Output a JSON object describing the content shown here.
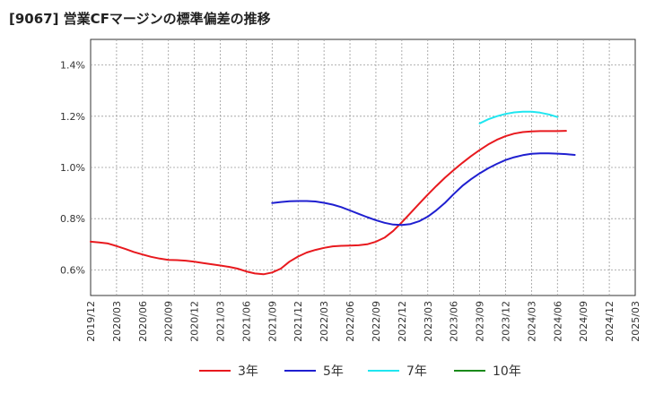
{
  "chart_data": {
    "type": "line",
    "title": "[9067]  営業CFマージンの標準偏差の推移",
    "xlabel": "",
    "ylabel": "",
    "x_ticks": [
      "2019/12",
      "2020/03",
      "2020/06",
      "2020/09",
      "2020/12",
      "2021/03",
      "2021/06",
      "2021/09",
      "2021/12",
      "2022/03",
      "2022/06",
      "2022/09",
      "2022/12",
      "2023/03",
      "2023/06",
      "2023/09",
      "2023/12",
      "2024/03",
      "2024/06",
      "2024/09",
      "2024/12",
      "2025/03"
    ],
    "y_ticks": [
      "0.6%",
      "0.8%",
      "1.0%",
      "1.2%",
      "1.4%"
    ],
    "y_tick_values": [
      0.6,
      0.8,
      1.0,
      1.2,
      1.4
    ],
    "ylim": [
      0.5,
      1.5
    ],
    "grid": true,
    "legend_position": "bottom",
    "series": [
      {
        "name": "3年",
        "color": "#e8191e",
        "points": [
          [
            "2019/12",
            0.71
          ],
          [
            "2020/01",
            0.707
          ],
          [
            "2020/02",
            0.703
          ],
          [
            "2020/03",
            0.693
          ],
          [
            "2020/04",
            0.682
          ],
          [
            "2020/05",
            0.67
          ],
          [
            "2020/06",
            0.66
          ],
          [
            "2020/07",
            0.651
          ],
          [
            "2020/08",
            0.644
          ],
          [
            "2020/09",
            0.639
          ],
          [
            "2020/10",
            0.638
          ],
          [
            "2020/11",
            0.636
          ],
          [
            "2020/12",
            0.632
          ],
          [
            "2021/01",
            0.627
          ],
          [
            "2021/02",
            0.622
          ],
          [
            "2021/03",
            0.617
          ],
          [
            "2021/04",
            0.612
          ],
          [
            "2021/05",
            0.605
          ],
          [
            "2021/06",
            0.594
          ],
          [
            "2021/07",
            0.586
          ],
          [
            "2021/08",
            0.583
          ],
          [
            "2021/09",
            0.59
          ],
          [
            "2021/10",
            0.605
          ],
          [
            "2021/11",
            0.632
          ],
          [
            "2021/12",
            0.652
          ],
          [
            "2022/01",
            0.668
          ],
          [
            "2022/02",
            0.678
          ],
          [
            "2022/03",
            0.686
          ],
          [
            "2022/04",
            0.692
          ],
          [
            "2022/05",
            0.694
          ],
          [
            "2022/06",
            0.695
          ],
          [
            "2022/07",
            0.696
          ],
          [
            "2022/08",
            0.7
          ],
          [
            "2022/09",
            0.71
          ],
          [
            "2022/10",
            0.726
          ],
          [
            "2022/11",
            0.752
          ],
          [
            "2022/12",
            0.786
          ],
          [
            "2023/01",
            0.822
          ],
          [
            "2023/02",
            0.858
          ],
          [
            "2023/03",
            0.894
          ],
          [
            "2023/04",
            0.928
          ],
          [
            "2023/05",
            0.96
          ],
          [
            "2023/06",
            0.99
          ],
          [
            "2023/07",
            1.018
          ],
          [
            "2023/08",
            1.044
          ],
          [
            "2023/09",
            1.068
          ],
          [
            "2023/10",
            1.09
          ],
          [
            "2023/11",
            1.108
          ],
          [
            "2023/12",
            1.122
          ],
          [
            "2024/01",
            1.132
          ],
          [
            "2024/02",
            1.138
          ],
          [
            "2024/03",
            1.141
          ],
          [
            "2024/04",
            1.142
          ],
          [
            "2024/05",
            1.142
          ],
          [
            "2024/06",
            1.142
          ],
          [
            "2024/07",
            1.143
          ]
        ]
      },
      {
        "name": "5年",
        "color": "#1f1fd0",
        "points": [
          [
            "2021/09",
            0.861
          ],
          [
            "2021/10",
            0.865
          ],
          [
            "2021/11",
            0.868
          ],
          [
            "2021/12",
            0.869
          ],
          [
            "2022/01",
            0.869
          ],
          [
            "2022/02",
            0.867
          ],
          [
            "2022/03",
            0.862
          ],
          [
            "2022/04",
            0.855
          ],
          [
            "2022/05",
            0.845
          ],
          [
            "2022/06",
            0.832
          ],
          [
            "2022/07",
            0.819
          ],
          [
            "2022/08",
            0.806
          ],
          [
            "2022/09",
            0.794
          ],
          [
            "2022/10",
            0.784
          ],
          [
            "2022/11",
            0.777
          ],
          [
            "2022/12",
            0.775
          ],
          [
            "2023/01",
            0.779
          ],
          [
            "2023/02",
            0.79
          ],
          [
            "2023/03",
            0.808
          ],
          [
            "2023/04",
            0.833
          ],
          [
            "2023/05",
            0.862
          ],
          [
            "2023/06",
            0.896
          ],
          [
            "2023/07",
            0.928
          ],
          [
            "2023/08",
            0.954
          ],
          [
            "2023/09",
            0.977
          ],
          [
            "2023/10",
            0.997
          ],
          [
            "2023/11",
            1.014
          ],
          [
            "2023/12",
            1.029
          ],
          [
            "2024/01",
            1.04
          ],
          [
            "2024/02",
            1.048
          ],
          [
            "2024/03",
            1.053
          ],
          [
            "2024/04",
            1.055
          ],
          [
            "2024/05",
            1.055
          ],
          [
            "2024/06",
            1.054
          ],
          [
            "2024/07",
            1.052
          ],
          [
            "2024/08",
            1.049
          ]
        ]
      },
      {
        "name": "7年",
        "color": "#1fe6f0",
        "points": [
          [
            "2023/09",
            1.172
          ],
          [
            "2023/10",
            1.188
          ],
          [
            "2023/11",
            1.2
          ],
          [
            "2023/12",
            1.209
          ],
          [
            "2024/01",
            1.215
          ],
          [
            "2024/02",
            1.218
          ],
          [
            "2024/03",
            1.218
          ],
          [
            "2024/04",
            1.214
          ],
          [
            "2024/05",
            1.207
          ],
          [
            "2024/06",
            1.197
          ]
        ]
      },
      {
        "name": "10年",
        "color": "#1a8a1a",
        "points": []
      }
    ]
  }
}
